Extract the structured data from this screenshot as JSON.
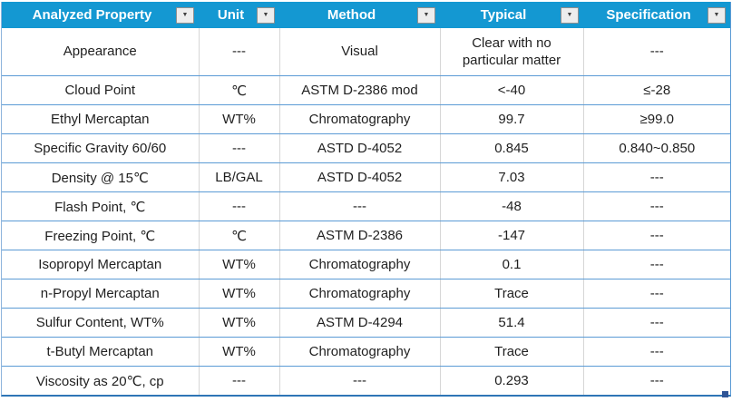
{
  "table": {
    "filter_icon": "▼",
    "columns": [
      {
        "label": "Analyzed Property"
      },
      {
        "label": "Unit"
      },
      {
        "label": "Method"
      },
      {
        "label": "Typical"
      },
      {
        "label": "Specification"
      }
    ],
    "rows": [
      [
        "Appearance",
        "---",
        "Visual",
        "Clear with no particular matter",
        "---"
      ],
      [
        "Cloud Point",
        "℃",
        "ASTM D-2386 mod",
        "<-40",
        "≤-28"
      ],
      [
        "Ethyl Mercaptan",
        "WT%",
        "Chromatography",
        "99.7",
        "≥99.0"
      ],
      [
        "Specific Gravity 60/60",
        "---",
        "ASTD D-4052",
        "0.845",
        "0.840~0.850"
      ],
      [
        "Density @ 15℃",
        "LB/GAL",
        "ASTD D-4052",
        "7.03",
        "---"
      ],
      [
        "Flash Point, ℃",
        "---",
        "---",
        "-48",
        "---"
      ],
      [
        "Freezing Point, ℃",
        "℃",
        "ASTM D-2386",
        "-147",
        "---"
      ],
      [
        "Isopropyl Mercaptan",
        "WT%",
        "Chromatography",
        "0.1",
        "---"
      ],
      [
        "n-Propyl Mercaptan",
        "WT%",
        "Chromatography",
        "Trace",
        "---"
      ],
      [
        "Sulfur Content, WT%",
        "WT%",
        "ASTM D-4294",
        "51.4",
        "---"
      ],
      [
        "t-Butyl Mercaptan",
        "WT%",
        "Chromatography",
        "Trace",
        "---"
      ],
      [
        "Viscosity as 20℃, cp",
        "---",
        "---",
        "0.293",
        "---"
      ]
    ],
    "colors": {
      "header_bg": "#1498d2",
      "header_text": "#ffffff",
      "row_border": "#5b9bd5",
      "column_border": "#d6d6d6",
      "outer_border": "#2e75b6",
      "body_text": "#1f1f1f",
      "resize_handle": "#2f5496"
    }
  }
}
